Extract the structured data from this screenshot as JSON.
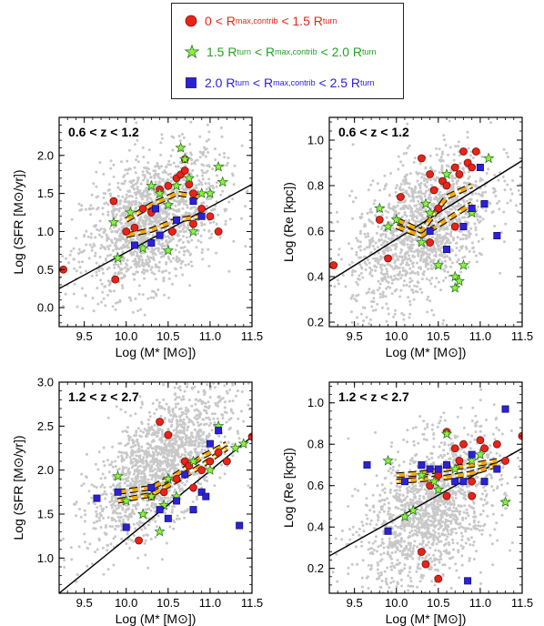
{
  "legend": [
    {
      "id": "red",
      "color": "#e8241a",
      "marker": "circle",
      "lo": "0",
      "rel1": "<",
      "mid": "R",
      "mid_sub": "max,contrib",
      "rel2": "<",
      "hi": "1.5 R",
      "hi_sub": "turn"
    },
    {
      "id": "green",
      "color": "#22a322",
      "fill": "#8ff23a",
      "marker": "star",
      "lo": "1.5 R",
      "lo_sub": "turn",
      "rel1": "<",
      "mid": "R",
      "mid_sub": "max,contrib",
      "rel2": "<",
      "hi": "2.0 R",
      "hi_sub": "turn"
    },
    {
      "id": "blue",
      "color": "#2b22d6",
      "marker": "square",
      "lo": "2.0 R",
      "lo_sub": "turn",
      "rel1": "<",
      "mid": "R",
      "mid_sub": "max,contrib",
      "rel2": "<",
      "hi": "2.5 R",
      "hi_sub": "turn"
    }
  ],
  "colors": {
    "background_points": "#c8c8c8",
    "relation_line": "#000000",
    "median_dash_outer": "#f5a800",
    "median_dash_inner": "#ffffff"
  },
  "chart_data": [
    {
      "type": "scatter",
      "panel": "top-left",
      "annotation": "0.6 < z < 1.2",
      "xlabel": "Log (M* [M⊙])",
      "ylabel": "Log (SFR [M⊙/yr])",
      "xlim": [
        9.2,
        11.5
      ],
      "ylim": [
        -0.25,
        2.5
      ],
      "xticks": [
        "9.5",
        "10.0",
        "10.5",
        "11.0",
        "11.5"
      ],
      "yticks": [
        "0.0",
        "0.5",
        "1.0",
        "1.5",
        "2.0"
      ],
      "background_cloud": {
        "x_center": 10.3,
        "x_spread": 0.55,
        "y_intercept": -3.5,
        "y_slope": 0.45,
        "y_spread": 0.42,
        "count": 1500
      },
      "relation_line": {
        "x": [
          9.2,
          11.5
        ],
        "y": [
          0.25,
          1.62
        ]
      },
      "median_lines": [
        {
          "x": [
            10.0,
            10.3,
            10.6,
            10.9
          ],
          "y": [
            1.15,
            1.35,
            1.5,
            1.45
          ]
        },
        {
          "x": [
            10.0,
            10.3,
            10.6,
            10.9
          ],
          "y": [
            0.95,
            1.02,
            1.15,
            1.2
          ]
        }
      ],
      "series": [
        {
          "legend": "red",
          "points": [
            [
              9.25,
              0.5
            ],
            [
              9.85,
              1.4
            ],
            [
              9.87,
              0.37
            ],
            [
              10.0,
              1.0
            ],
            [
              10.1,
              1.05
            ],
            [
              10.2,
              1.3
            ],
            [
              10.3,
              1.25
            ],
            [
              10.4,
              1.55
            ],
            [
              10.5,
              1.6
            ],
            [
              10.6,
              1.7
            ],
            [
              10.65,
              1.75
            ],
            [
              10.7,
              1.8
            ],
            [
              10.7,
              1.95
            ],
            [
              10.75,
              1.62
            ],
            [
              10.8,
              1.1
            ],
            [
              10.8,
              1.5
            ],
            [
              10.9,
              1.3
            ],
            [
              11.0,
              1.2
            ],
            [
              11.1,
              1.0
            ],
            [
              10.55,
              1.0
            ]
          ]
        },
        {
          "legend": "green",
          "points": [
            [
              9.85,
              1.12
            ],
            [
              9.9,
              0.65
            ],
            [
              10.05,
              1.25
            ],
            [
              10.2,
              0.78
            ],
            [
              10.3,
              1.6
            ],
            [
              10.4,
              1.5
            ],
            [
              10.5,
              1.35
            ],
            [
              10.6,
              1.6
            ],
            [
              10.65,
              2.1
            ],
            [
              10.7,
              1.95
            ],
            [
              10.75,
              1.7
            ],
            [
              10.8,
              1.0
            ],
            [
              10.5,
              0.75
            ],
            [
              11.0,
              1.5
            ],
            [
              11.1,
              1.85
            ],
            [
              11.15,
              1.65
            ],
            [
              10.9,
              1.5
            ]
          ]
        },
        {
          "legend": "blue",
          "points": [
            [
              10.1,
              0.82
            ],
            [
              10.3,
              0.85
            ],
            [
              10.4,
              0.95
            ],
            [
              10.6,
              1.15
            ],
            [
              10.8,
              1.4
            ],
            [
              10.9,
              1.2
            ],
            [
              10.35,
              1.3
            ]
          ]
        }
      ]
    },
    {
      "type": "scatter",
      "panel": "top-right",
      "annotation": "0.6 < z < 1.2",
      "xlabel": "Log (M* [M⊙])",
      "ylabel": "Log (Re [kpc])",
      "xlim": [
        9.2,
        11.5
      ],
      "ylim": [
        0.18,
        1.1
      ],
      "xticks": [
        "9.5",
        "10.0",
        "10.5",
        "11.0",
        "11.5"
      ],
      "yticks": [
        "0.2",
        "0.4",
        "0.6",
        "0.8",
        "1.0"
      ],
      "background_cloud": {
        "x_center": 10.3,
        "x_spread": 0.55,
        "y_intercept": -1.45,
        "y_slope": 0.2,
        "y_spread": 0.15,
        "count": 1500
      },
      "relation_line": {
        "x": [
          9.2,
          11.5
        ],
        "y": [
          0.38,
          0.91
        ]
      },
      "median_lines": [
        {
          "x": [
            10.0,
            10.3,
            10.6,
            10.9
          ],
          "y": [
            0.65,
            0.6,
            0.75,
            0.8
          ]
        },
        {
          "x": [
            10.0,
            10.3,
            10.6,
            10.9
          ],
          "y": [
            0.62,
            0.58,
            0.65,
            0.72
          ]
        }
      ],
      "series": [
        {
          "legend": "red",
          "points": [
            [
              9.25,
              0.45
            ],
            [
              9.8,
              0.65
            ],
            [
              9.9,
              0.48
            ],
            [
              10.05,
              0.75
            ],
            [
              10.3,
              0.92
            ],
            [
              10.4,
              0.85
            ],
            [
              10.45,
              0.78
            ],
            [
              10.55,
              0.82
            ],
            [
              10.6,
              0.8
            ],
            [
              10.7,
              0.88
            ],
            [
              10.75,
              0.85
            ],
            [
              10.8,
              0.95
            ],
            [
              10.85,
              0.9
            ],
            [
              10.9,
              0.88
            ],
            [
              10.95,
              0.95
            ],
            [
              10.5,
              0.7
            ],
            [
              10.7,
              0.62
            ],
            [
              10.4,
              0.55
            ]
          ]
        },
        {
          "legend": "green",
          "points": [
            [
              9.8,
              0.7
            ],
            [
              9.9,
              0.62
            ],
            [
              10.0,
              0.65
            ],
            [
              10.3,
              0.55
            ],
            [
              10.35,
              0.72
            ],
            [
              10.6,
              0.85
            ],
            [
              10.7,
              0.4
            ],
            [
              10.7,
              0.35
            ],
            [
              10.75,
              0.38
            ],
            [
              10.8,
              0.45
            ],
            [
              10.9,
              0.68
            ],
            [
              11.1,
              0.92
            ],
            [
              10.4,
              0.68
            ],
            [
              10.5,
              0.45
            ]
          ]
        },
        {
          "legend": "blue",
          "points": [
            [
              10.4,
              0.6
            ],
            [
              10.6,
              0.52
            ],
            [
              10.8,
              0.62
            ],
            [
              10.9,
              0.7
            ],
            [
              11.0,
              0.88
            ],
            [
              11.05,
              0.72
            ],
            [
              11.2,
              0.58
            ]
          ]
        }
      ]
    },
    {
      "type": "scatter",
      "panel": "bottom-left",
      "annotation": "1.2 < z < 2.7",
      "xlabel": "Log (M* [M⊙])",
      "ylabel": "Log (SFR [M⊙/yr])",
      "xlim": [
        9.2,
        11.5
      ],
      "ylim": [
        0.6,
        3.0
      ],
      "xticks": [
        "9.5",
        "10.0",
        "10.5",
        "11.0",
        "11.5"
      ],
      "yticks": [
        "1.0",
        "1.5",
        "2.0",
        "2.5",
        "3.0"
      ],
      "background_cloud": {
        "x_center": 10.4,
        "x_spread": 0.55,
        "y_intercept": -5.2,
        "y_slope": 0.7,
        "y_spread": 0.33,
        "count": 1500
      },
      "relation_line": {
        "x": [
          9.2,
          11.5
        ],
        "y": [
          0.6,
          2.38
        ]
      },
      "median_lines": [
        {
          "x": [
            9.9,
            10.3,
            10.6,
            10.9,
            11.2
          ],
          "y": [
            1.75,
            1.8,
            1.95,
            2.15,
            2.3
          ]
        },
        {
          "x": [
            9.9,
            10.3,
            10.6,
            10.9,
            11.2
          ],
          "y": [
            1.65,
            1.72,
            1.88,
            2.05,
            2.25
          ]
        }
      ],
      "series": [
        {
          "legend": "red",
          "points": [
            [
              10.15,
              1.2
            ],
            [
              10.3,
              1.7
            ],
            [
              10.4,
              2.55
            ],
            [
              10.5,
              2.4
            ],
            [
              10.6,
              1.9
            ],
            [
              10.7,
              2.1
            ],
            [
              10.75,
              2.05
            ],
            [
              10.8,
              1.8
            ],
            [
              10.9,
              2.0
            ],
            [
              11.0,
              2.1
            ],
            [
              11.1,
              2.2
            ],
            [
              11.2,
              2.1
            ],
            [
              11.5,
              2.38
            ],
            [
              10.45,
              1.75
            ]
          ]
        },
        {
          "legend": "green",
          "points": [
            [
              9.9,
              1.93
            ],
            [
              10.0,
              1.65
            ],
            [
              10.2,
              1.5
            ],
            [
              10.3,
              1.7
            ],
            [
              10.4,
              1.3
            ],
            [
              10.5,
              1.9
            ],
            [
              10.6,
              1.7
            ],
            [
              10.8,
              2.1
            ],
            [
              11.0,
              2.0
            ],
            [
              11.1,
              2.5
            ],
            [
              11.3,
              2.25
            ],
            [
              11.4,
              2.3
            ],
            [
              10.45,
              1.6
            ]
          ]
        },
        {
          "legend": "blue",
          "points": [
            [
              9.65,
              1.68
            ],
            [
              9.9,
              1.75
            ],
            [
              10.0,
              1.35
            ],
            [
              10.3,
              1.8
            ],
            [
              10.4,
              1.55
            ],
            [
              10.5,
              1.45
            ],
            [
              10.6,
              1.65
            ],
            [
              10.7,
              1.95
            ],
            [
              10.8,
              1.55
            ],
            [
              10.9,
              1.75
            ],
            [
              11.0,
              2.3
            ],
            [
              11.1,
              2.45
            ],
            [
              11.35,
              1.37
            ],
            [
              10.95,
              1.7
            ]
          ]
        }
      ]
    },
    {
      "type": "scatter",
      "panel": "bottom-right",
      "annotation": "1.2 < z < 2.7",
      "xlabel": "Log (M* [M⊙])",
      "ylabel": "Log (Re [kpc])",
      "xlim": [
        9.2,
        11.5
      ],
      "ylim": [
        0.08,
        1.1
      ],
      "xticks": [
        "9.5",
        "10.0",
        "10.5",
        "11.0",
        "11.5"
      ],
      "yticks": [
        "0.2",
        "0.4",
        "0.6",
        "0.8",
        "1.0"
      ],
      "background_cloud": {
        "x_center": 10.4,
        "x_spread": 0.55,
        "y_intercept": -1.6,
        "y_slope": 0.2,
        "y_spread": 0.17,
        "count": 1500
      },
      "relation_line": {
        "x": [
          9.2,
          11.5
        ],
        "y": [
          0.26,
          0.78
        ]
      },
      "median_lines": [
        {
          "x": [
            10.0,
            10.3,
            10.6,
            10.9,
            11.2
          ],
          "y": [
            0.65,
            0.66,
            0.68,
            0.7,
            0.72
          ]
        },
        {
          "x": [
            10.0,
            10.3,
            10.6,
            10.9,
            11.2
          ],
          "y": [
            0.62,
            0.63,
            0.64,
            0.66,
            0.7
          ]
        }
      ],
      "series": [
        {
          "legend": "red",
          "points": [
            [
              10.3,
              0.28
            ],
            [
              10.35,
              0.22
            ],
            [
              10.4,
              0.6
            ],
            [
              10.5,
              0.65
            ],
            [
              10.6,
              0.86
            ],
            [
              10.7,
              0.78
            ],
            [
              10.75,
              0.72
            ],
            [
              10.8,
              0.8
            ],
            [
              10.9,
              0.62
            ],
            [
              11.0,
              0.82
            ],
            [
              11.05,
              0.78
            ],
            [
              11.2,
              0.8
            ],
            [
              11.3,
              0.72
            ],
            [
              11.5,
              0.84
            ],
            [
              10.5,
              0.15
            ],
            [
              10.6,
              0.55
            ],
            [
              10.9,
              0.55
            ]
          ]
        },
        {
          "legend": "green",
          "points": [
            [
              9.9,
              0.72
            ],
            [
              10.1,
              0.45
            ],
            [
              10.2,
              0.48
            ],
            [
              10.3,
              0.65
            ],
            [
              10.5,
              0.58
            ],
            [
              10.6,
              0.85
            ],
            [
              10.7,
              0.68
            ],
            [
              10.9,
              0.72
            ],
            [
              11.0,
              0.75
            ],
            [
              11.3,
              0.52
            ],
            [
              10.45,
              0.62
            ]
          ]
        },
        {
          "legend": "blue",
          "points": [
            [
              9.65,
              0.7
            ],
            [
              9.9,
              0.38
            ],
            [
              10.1,
              0.62
            ],
            [
              10.3,
              0.7
            ],
            [
              10.4,
              0.68
            ],
            [
              10.5,
              0.68
            ],
            [
              10.6,
              0.7
            ],
            [
              10.7,
              0.62
            ],
            [
              10.8,
              0.62
            ],
            [
              10.85,
              0.14
            ],
            [
              10.9,
              0.75
            ],
            [
              11.05,
              0.62
            ],
            [
              11.3,
              0.97
            ],
            [
              11.2,
              0.68
            ]
          ]
        }
      ]
    }
  ]
}
